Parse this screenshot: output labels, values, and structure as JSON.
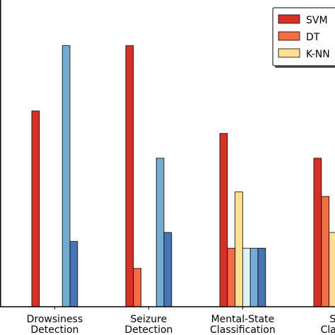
{
  "chart_data": {
    "type": "bar",
    "title": "",
    "xlabel": "",
    "ylabel": "",
    "categories": [
      [
        "Drowsiness",
        "Detection"
      ],
      [
        "Seizure",
        "Detection"
      ],
      [
        "Mental-State",
        "Classification"
      ],
      [
        "Str",
        "Classif"
      ]
    ],
    "ylim": [
      0,
      13
    ],
    "grid": false,
    "legend_position": "top-right",
    "series": [
      {
        "name": "SVM",
        "color": "#d73027",
        "values": [
          8.7,
          11.6,
          7.7,
          6.6
        ]
      },
      {
        "name": "DT",
        "color": "#f46d43",
        "values": [
          0,
          1.7,
          2.6,
          4.9
        ]
      },
      {
        "name": "K-NN",
        "color": "#fee090",
        "values": [
          0,
          0,
          5.1,
          3.3
        ]
      },
      {
        "color": "#e0f3f8",
        "values": [
          0,
          0,
          2.6,
          1.7
        ]
      },
      {
        "color": "#74add1",
        "values": [
          11.6,
          6.6,
          2.6,
          0
        ]
      },
      {
        "color": "#4575b4",
        "values": [
          2.9,
          3.3,
          2.6,
          0
        ]
      }
    ]
  }
}
